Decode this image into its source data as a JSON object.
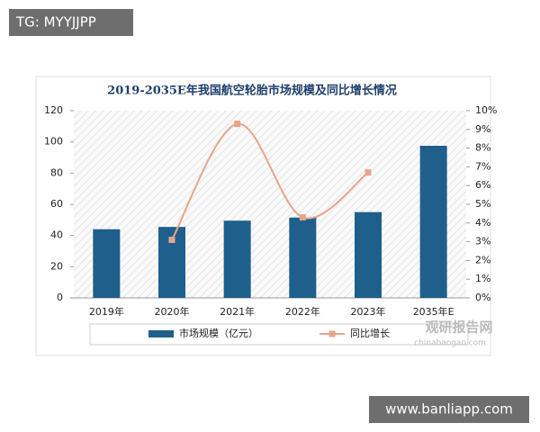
{
  "watermarks": {
    "top": "TG: MYYJJPP",
    "bottom": "www.banliapp.com",
    "source": "观研报告网",
    "source_url": "chinabaogao.com"
  },
  "chart_data": {
    "type": "bar-line",
    "title": "2019-2035E年我国航空轮胎市场规模及同比增长情况",
    "categories": [
      "2019年",
      "2020年",
      "2021年",
      "2022年",
      "2023年",
      "2035年E"
    ],
    "series": [
      {
        "name": "市场规模（亿元）",
        "type": "bar",
        "color": "#1f5f8b",
        "values": [
          44,
          45.5,
          49.5,
          51.5,
          55,
          97.5
        ]
      },
      {
        "name": "同比增长",
        "type": "line",
        "axis": "y2",
        "color": "#e6a58a",
        "values": [
          null,
          3.1,
          9.3,
          4.3,
          6.7,
          null
        ]
      }
    ],
    "ylim": [
      0,
      120
    ],
    "yticks": [
      0,
      20,
      40,
      60,
      80,
      100,
      120
    ],
    "y2lim": [
      0,
      10
    ],
    "y2ticks": [
      {
        "value": 0,
        "label": "0%"
      },
      {
        "value": 1,
        "label": "1%"
      },
      {
        "value": 2,
        "label": "2%"
      },
      {
        "value": 3,
        "label": "3%"
      },
      {
        "value": 4,
        "label": "4%"
      },
      {
        "value": 5,
        "label": "5%"
      },
      {
        "value": 6,
        "label": "6%"
      },
      {
        "value": 7,
        "label": "7%"
      },
      {
        "value": 8,
        "label": "8%"
      },
      {
        "value": 9,
        "label": "9%"
      },
      {
        "value": 10,
        "label": "10%"
      }
    ],
    "legend": "bottom"
  }
}
